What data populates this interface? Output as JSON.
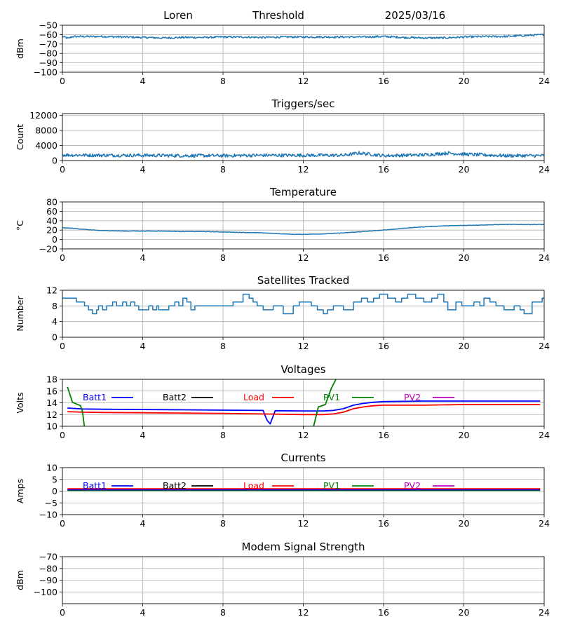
{
  "header": {
    "station": "Loren",
    "mode": "Threshold",
    "date": "2025/03/16"
  },
  "colors": {
    "trace": "#1f77b4",
    "grid": "#b0b0b0",
    "batt1": "#0000ff",
    "batt2": "#000000",
    "load": "#ff0000",
    "pv1": "#008000",
    "pv2": "#bf00bf"
  },
  "chart_data": [
    {
      "id": "threshold",
      "type": "line",
      "title": "",
      "xlabel": "",
      "ylabel": "dBm",
      "xlim": [
        0,
        24
      ],
      "ylim": [
        -100,
        -50
      ],
      "x_ticks": [
        0,
        4,
        8,
        12,
        16,
        20,
        24
      ],
      "y_ticks": [
        -100,
        -90,
        -80,
        -70,
        -60,
        -50
      ],
      "grid": true,
      "series": [
        {
          "style": "noisy",
          "noise": 1.0,
          "x": [
            0,
            0.3,
            0.5,
            1,
            2,
            3,
            4,
            5,
            6,
            7,
            8,
            9,
            10,
            11,
            12,
            13,
            14,
            15,
            16,
            17,
            18,
            19,
            20,
            21,
            22,
            23,
            24
          ],
          "y": [
            -62,
            -64,
            -62,
            -62,
            -62,
            -62.5,
            -63,
            -63.5,
            -63,
            -63,
            -62.5,
            -62.5,
            -63,
            -62.5,
            -62.5,
            -62.5,
            -62.5,
            -62.5,
            -62,
            -63,
            -63.5,
            -63.5,
            -62.5,
            -62,
            -62,
            -61,
            -60
          ]
        }
      ]
    },
    {
      "id": "triggers",
      "type": "line",
      "title": "Triggers/sec",
      "xlabel": "",
      "ylabel": "Count",
      "xlim": [
        0,
        24
      ],
      "ylim": [
        0,
        12500
      ],
      "x_ticks": [
        0,
        4,
        8,
        12,
        16,
        20,
        24
      ],
      "y_ticks": [
        0,
        4000,
        8000,
        12000
      ],
      "grid": true,
      "series": [
        {
          "style": "noisy",
          "noise": 450,
          "x": [
            0,
            2,
            4,
            6,
            8,
            10,
            12,
            14,
            14.8,
            16,
            18,
            19.2,
            20,
            22,
            24
          ],
          "y": [
            1500,
            1400,
            1400,
            1300,
            1300,
            1400,
            1400,
            1400,
            2000,
            1300,
            1500,
            2000,
            1700,
            1300,
            1300
          ]
        }
      ]
    },
    {
      "id": "temperature",
      "type": "line",
      "title": "Temperature",
      "xlabel": "",
      "ylabel": "°C",
      "xlim": [
        0,
        24
      ],
      "ylim": [
        -20,
        80
      ],
      "x_ticks": [
        0,
        4,
        8,
        12,
        16,
        20,
        24
      ],
      "y_ticks": [
        -20,
        0,
        20,
        40,
        60,
        80
      ],
      "grid": true,
      "series": [
        {
          "style": "noisy",
          "noise": 0.5,
          "x": [
            0,
            0.5,
            1,
            1.5,
            2,
            3,
            4,
            5,
            6,
            7,
            8,
            9,
            10,
            11,
            11.5,
            12,
            13,
            14,
            15,
            16,
            17,
            18,
            19,
            20,
            21,
            22,
            23,
            24
          ],
          "y": [
            25,
            24,
            22,
            20,
            19,
            18,
            18,
            18,
            17,
            17,
            16,
            15,
            14,
            12,
            11,
            11,
            12,
            14,
            17,
            20,
            24,
            27,
            29,
            30,
            31,
            32,
            32,
            32
          ]
        }
      ]
    },
    {
      "id": "satellites",
      "type": "line",
      "title": "Satellites Tracked",
      "xlabel": "",
      "ylabel": "Number",
      "xlim": [
        0,
        24
      ],
      "ylim": [
        0,
        12
      ],
      "x_ticks": [
        0,
        4,
        8,
        12,
        16,
        20,
        24
      ],
      "y_ticks": [
        0,
        4,
        8,
        12
      ],
      "grid": true,
      "series": [
        {
          "style": "step",
          "x": [
            0,
            0.7,
            1.1,
            1.3,
            1.5,
            1.7,
            1.8,
            2.0,
            2.2,
            2.5,
            2.7,
            3.0,
            3.2,
            3.4,
            3.6,
            3.8,
            4.3,
            4.5,
            4.7,
            4.8,
            5.3,
            5.6,
            5.8,
            6.0,
            6.2,
            6.4,
            6.6,
            7.5,
            8.5,
            9.0,
            9.3,
            9.5,
            9.7,
            10.0,
            10.5,
            11.0,
            11.5,
            11.8,
            12.4,
            12.7,
            13.0,
            13.2,
            13.5,
            14.0,
            14.5,
            14.9,
            15.2,
            15.5,
            15.8,
            16.2,
            16.6,
            16.9,
            17.2,
            17.6,
            18.0,
            18.4,
            18.7,
            19.0,
            19.2,
            19.6,
            19.9,
            20.5,
            20.8,
            21.0,
            21.3,
            21.6,
            22.0,
            22.5,
            22.8,
            23.0,
            23.4,
            23.9
          ],
          "y": [
            10,
            9,
            8,
            7,
            6,
            7,
            8,
            7,
            8,
            9,
            8,
            9,
            8,
            9,
            8,
            7,
            8,
            7,
            8,
            7,
            8,
            9,
            8,
            10,
            9,
            7,
            8,
            8,
            9,
            11,
            10,
            9,
            8,
            7,
            8,
            6,
            8,
            9,
            8,
            7,
            6,
            7,
            8,
            7,
            9,
            10,
            9,
            10,
            11,
            10,
            9,
            10,
            11,
            10,
            9,
            10,
            11,
            9,
            7,
            9,
            8,
            9,
            8,
            10,
            9,
            8,
            7,
            8,
            7,
            6,
            9,
            10
          ]
        }
      ]
    },
    {
      "id": "voltages",
      "type": "line",
      "title": "Voltages",
      "xlabel": "",
      "ylabel": "Volts",
      "xlim": [
        0,
        24
      ],
      "ylim": [
        10,
        18
      ],
      "x_ticks": [
        0,
        4,
        8,
        12,
        16,
        20,
        24
      ],
      "y_ticks": [
        10,
        12,
        14,
        16,
        18
      ],
      "grid": true,
      "legend": [
        "Batt1",
        "Batt2",
        "Load",
        "PV1",
        "PV2"
      ],
      "series": [
        {
          "name": "Batt1",
          "color_key": "batt1",
          "x": [
            0.25,
            1,
            2,
            4,
            6,
            8,
            10,
            10.1,
            10.2,
            10.35,
            10.6,
            12,
            13,
            13.5,
            14,
            14.5,
            15,
            15.5,
            16,
            18,
            20,
            22,
            23.8
          ],
          "y": [
            13.1,
            12.95,
            12.9,
            12.85,
            12.8,
            12.75,
            12.7,
            11.8,
            11.0,
            10.4,
            12.65,
            12.6,
            12.6,
            12.7,
            13.0,
            13.6,
            13.9,
            14.1,
            14.2,
            14.3,
            14.3,
            14.3,
            14.3
          ]
        },
        {
          "name": "Load",
          "color_key": "load",
          "x": [
            0.25,
            1,
            2,
            4,
            6,
            8,
            10,
            12,
            13,
            13.5,
            14,
            14.5,
            15,
            15.5,
            16,
            18,
            20,
            22,
            23.8
          ],
          "y": [
            12.5,
            12.4,
            12.35,
            12.3,
            12.25,
            12.2,
            12.1,
            12.0,
            12.0,
            12.1,
            12.4,
            13.0,
            13.3,
            13.5,
            13.6,
            13.6,
            13.7,
            13.7,
            13.7
          ]
        },
        {
          "name": "PV1",
          "color_key": "pv1",
          "x": [
            0.25,
            0.5,
            0.9,
            1.0,
            1.1,
            12.5,
            12.75,
            12.85,
            13.1,
            13.4,
            13.7
          ],
          "y": [
            16.7,
            14.1,
            13.5,
            12.5,
            9.8,
            9.8,
            13.3,
            13.4,
            13.7,
            16.5,
            18.5
          ]
        }
      ]
    },
    {
      "id": "currents",
      "type": "line",
      "title": "Currents",
      "xlabel": "",
      "ylabel": "Amps",
      "xlim": [
        0,
        24
      ],
      "ylim": [
        -10,
        10
      ],
      "x_ticks": [
        0,
        4,
        8,
        12,
        16,
        20,
        24
      ],
      "y_ticks": [
        -10,
        -5,
        0,
        5,
        10
      ],
      "grid": true,
      "legend": [
        "Batt1",
        "Batt2",
        "Load",
        "PV1",
        "PV2"
      ],
      "series": [
        {
          "name": "PV1",
          "color_key": "pv1",
          "x": [
            0.25,
            23.8
          ],
          "y": [
            0.3,
            0.3
          ]
        },
        {
          "name": "Batt1",
          "color_key": "batt1",
          "x": [
            0.25,
            23.8
          ],
          "y": [
            0.6,
            0.6
          ]
        },
        {
          "name": "Load",
          "color_key": "load",
          "x": [
            0.25,
            23.8
          ],
          "y": [
            1.0,
            1.0
          ]
        }
      ]
    },
    {
      "id": "modem",
      "type": "line",
      "title": "Modem Signal Strength",
      "xlabel": "",
      "ylabel": "dBm",
      "xlim": [
        0,
        24
      ],
      "ylim": [
        -110,
        -70
      ],
      "x_ticks": [
        0,
        4,
        8,
        12,
        16,
        20,
        24
      ],
      "y_ticks": [
        -100,
        -90,
        -80,
        -70
      ],
      "grid": true,
      "series": []
    }
  ]
}
